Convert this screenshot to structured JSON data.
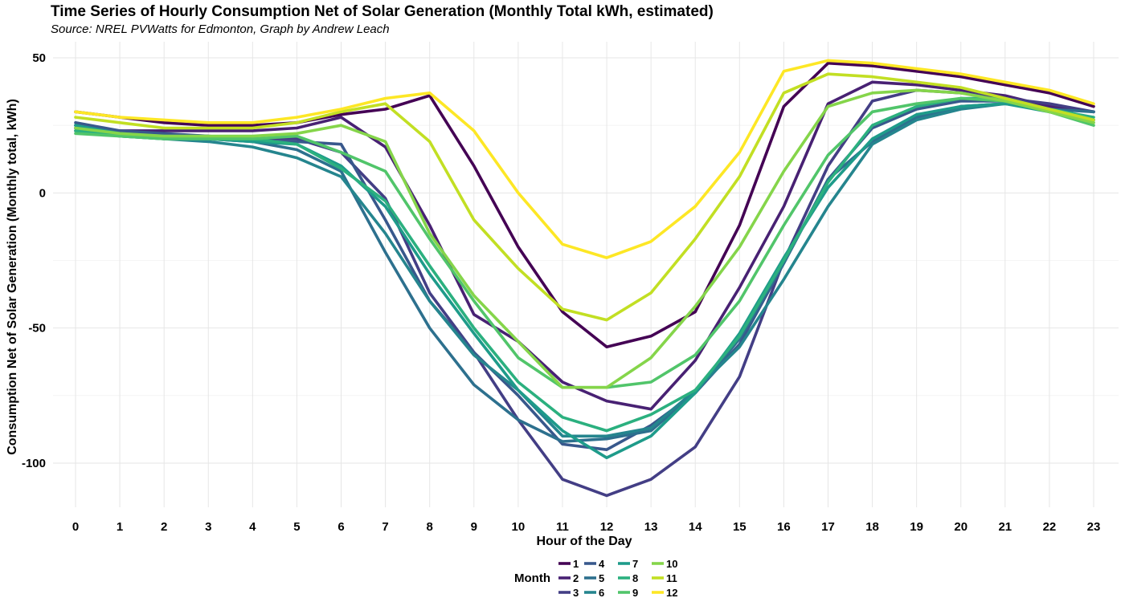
{
  "chart_data": {
    "type": "line",
    "title": "Time Series of Hourly Consumption Net of Solar Generation (Monthly Total kWh, estimated)",
    "subtitle": "Source: NREL PVWatts for Edmonton, Graph by Andrew Leach",
    "xlabel": "Hour of the Day",
    "ylabel": "Consumption Net of Solar Generation (Monthly total, kWh)",
    "x": [
      0,
      1,
      2,
      3,
      4,
      5,
      6,
      7,
      8,
      9,
      10,
      11,
      12,
      13,
      14,
      15,
      16,
      17,
      18,
      19,
      20,
      21,
      22,
      23
    ],
    "x_tick_labels": [
      "0",
      "1",
      "2",
      "3",
      "4",
      "5",
      "6",
      "7",
      "8",
      "9",
      "10",
      "11",
      "12",
      "13",
      "14",
      "15",
      "16",
      "17",
      "18",
      "19",
      "20",
      "21",
      "22",
      "23"
    ],
    "ylim": [
      -115,
      53
    ],
    "y_ticks": [
      50,
      0,
      -50,
      -100
    ],
    "y_tick_labels": [
      "50",
      "0",
      "-50",
      "-100"
    ],
    "grid": true,
    "legend": {
      "title": "Month",
      "position": "bottom"
    },
    "series": [
      {
        "name": "1",
        "color": "#440154",
        "values": [
          30,
          28,
          26,
          25,
          25,
          26,
          29,
          31,
          36,
          10,
          -20,
          -44,
          -57,
          -53,
          -44,
          -12,
          32,
          48,
          47,
          45,
          43,
          40,
          37,
          32
        ]
      },
      {
        "name": "2",
        "color": "#482173",
        "values": [
          24,
          23,
          23,
          23,
          23,
          24,
          28,
          17,
          -12,
          -45,
          -55,
          -70,
          -77,
          -80,
          -62,
          -35,
          -5,
          33,
          41,
          40,
          38,
          36,
          32,
          30
        ]
      },
      {
        "name": "3",
        "color": "#433E85",
        "values": [
          23,
          22,
          21,
          21,
          20,
          20,
          15,
          -2,
          -37,
          -59,
          -84,
          -106,
          -112,
          -106,
          -94,
          -68,
          -25,
          10,
          34,
          38,
          37,
          35,
          33,
          30
        ]
      },
      {
        "name": "4",
        "color": "#38588C",
        "values": [
          26,
          23,
          22,
          21,
          19,
          19,
          18,
          -10,
          -40,
          -59,
          -75,
          -93,
          -95,
          -86,
          -74,
          -56,
          -26,
          5,
          24,
          31,
          34,
          34,
          30,
          27
        ]
      },
      {
        "name": "5",
        "color": "#2D708E",
        "values": [
          25,
          22,
          20,
          20,
          19,
          16,
          8,
          -22,
          -50,
          -71,
          -84,
          -92,
          -91,
          -88,
          -74,
          -54,
          -26,
          5,
          19,
          28,
          32,
          33,
          31,
          30
        ]
      },
      {
        "name": "6",
        "color": "#25858E",
        "values": [
          25,
          21,
          20,
          19,
          17,
          13,
          6,
          -15,
          -40,
          -60,
          -73,
          -90,
          -90,
          -87,
          -73,
          -57,
          -32,
          -5,
          18,
          27,
          31,
          33,
          31,
          27
        ]
      },
      {
        "name": "7",
        "color": "#1E9B8A",
        "values": [
          25,
          22,
          21,
          20,
          19,
          18,
          10,
          -5,
          -30,
          -52,
          -73,
          -88,
          -98,
          -90,
          -74,
          -52,
          -24,
          2,
          20,
          29,
          32,
          33,
          30,
          26
        ]
      },
      {
        "name": "8",
        "color": "#2BB07F",
        "values": [
          23,
          21,
          20,
          20,
          20,
          18,
          9,
          -3,
          -27,
          -50,
          -70,
          -83,
          -88,
          -82,
          -73,
          -53,
          -25,
          4,
          25,
          32,
          35,
          35,
          31,
          28
        ]
      },
      {
        "name": "9",
        "color": "#51C56A",
        "values": [
          22,
          21,
          20,
          20,
          20,
          21,
          15,
          8,
          -17,
          -40,
          -61,
          -72,
          -72,
          -70,
          -60,
          -40,
          -12,
          14,
          30,
          33,
          35,
          34,
          30,
          25
        ]
      },
      {
        "name": "10",
        "color": "#85D54A",
        "values": [
          24,
          22,
          21,
          21,
          21,
          22,
          25,
          19,
          -15,
          -38,
          -55,
          -72,
          -72,
          -61,
          -42,
          -20,
          8,
          32,
          37,
          38,
          37,
          34,
          30,
          26
        ]
      },
      {
        "name": "11",
        "color": "#C2DF23",
        "values": [
          28,
          26,
          24,
          24,
          24,
          26,
          30,
          33,
          19,
          -10,
          -28,
          -43,
          -47,
          -37,
          -17,
          6,
          37,
          44,
          43,
          41,
          39,
          35,
          31,
          27
        ]
      },
      {
        "name": "12",
        "color": "#FDE725",
        "values": [
          30,
          28,
          27,
          26,
          26,
          28,
          31,
          35,
          37,
          23,
          0,
          -19,
          -24,
          -18,
          -5,
          15,
          45,
          49,
          48,
          46,
          44,
          41,
          38,
          33
        ]
      }
    ]
  }
}
